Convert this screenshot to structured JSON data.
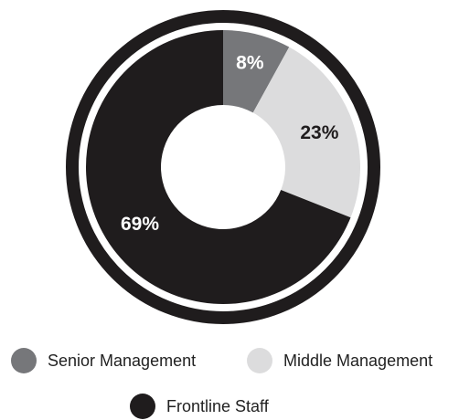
{
  "chart_data": {
    "type": "pie",
    "categories": [
      "Senior Management",
      "Middle Management",
      "Frontline Staff"
    ],
    "values": [
      8,
      23,
      69
    ],
    "labels": [
      "8%",
      "23%",
      "69%"
    ],
    "colors": [
      "#76777a",
      "#dcdcdd",
      "#1f1c1d"
    ],
    "legend_position": "bottom"
  },
  "legend": {
    "items": [
      {
        "label": "Senior Management",
        "color": "#76777a"
      },
      {
        "label": "Middle Management",
        "color": "#dcdcdd"
      },
      {
        "label": "Frontline Staff",
        "color": "#1f1c1d"
      }
    ]
  }
}
